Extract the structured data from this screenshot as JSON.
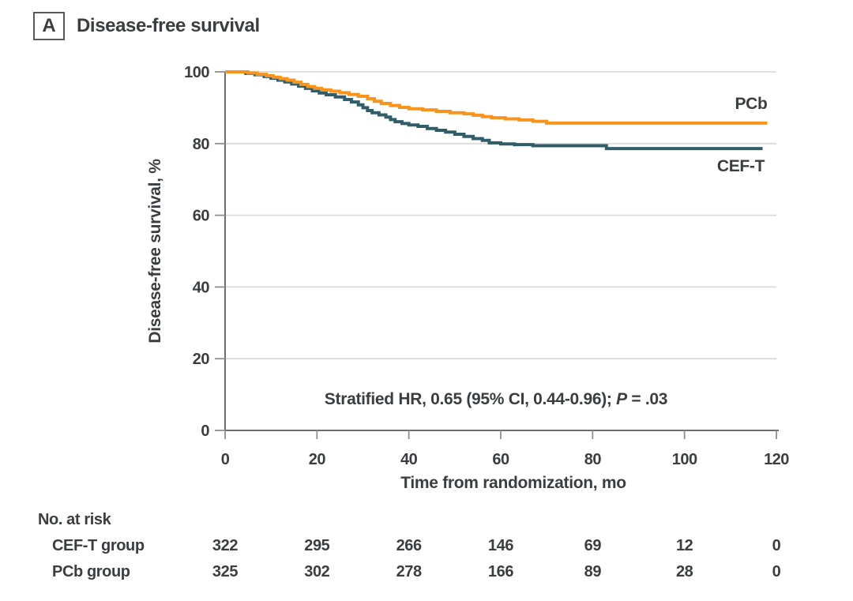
{
  "header": {
    "panel_letter": "A",
    "title": "Disease-free survival"
  },
  "annotation": {
    "text1": "Stratified HR, 0.65 (95% CI, 0.44-0.96); ",
    "p": "P",
    "text2": " = .03"
  },
  "chart_data": {
    "type": "line",
    "subtype": "kaplan-meier-step",
    "title": "Disease-free survival",
    "xlabel": "Time from randomization, mo",
    "ylabel": "Disease-free survival, %",
    "xlim": [
      0,
      120
    ],
    "ylim": [
      0,
      100
    ],
    "x_ticks": [
      0,
      20,
      40,
      60,
      80,
      100,
      120
    ],
    "y_ticks": [
      0,
      20,
      40,
      60,
      80,
      100
    ],
    "grid": "horizontal-only",
    "legend_position": "end-of-line-labels",
    "colors": {
      "cef_t": "#315D68",
      "pcb": "#F7941E",
      "gridline": "#DBDBDB",
      "axis": "#6E6E6E",
      "text": "#3A3E41"
    },
    "series": [
      {
        "name": "CEF-T",
        "color": "#315D68",
        "end_t": 117,
        "steps": [
          [
            0,
            100
          ],
          [
            4.5,
            99.6
          ],
          [
            6.5,
            99.2
          ],
          [
            8.5,
            98.7
          ],
          [
            10,
            98.2
          ],
          [
            11.5,
            97.7
          ],
          [
            13,
            97.2
          ],
          [
            14.5,
            96.6
          ],
          [
            16,
            96
          ],
          [
            17.5,
            95.4
          ],
          [
            19,
            94.7
          ],
          [
            20.5,
            94.1
          ],
          [
            22,
            93.6
          ],
          [
            24,
            93
          ],
          [
            26,
            92.3
          ],
          [
            27.5,
            91.6
          ],
          [
            29,
            90.8
          ],
          [
            30,
            90
          ],
          [
            31,
            89.2
          ],
          [
            32,
            88.6
          ],
          [
            33.5,
            88
          ],
          [
            35,
            87.4
          ],
          [
            36,
            86.7
          ],
          [
            37,
            86.1
          ],
          [
            38.5,
            85.6
          ],
          [
            40,
            85.2
          ],
          [
            42,
            84.8
          ],
          [
            44,
            84.2
          ],
          [
            46,
            83.7
          ],
          [
            48,
            83.2
          ],
          [
            50,
            82.6
          ],
          [
            52,
            82
          ],
          [
            54,
            81.4
          ],
          [
            56,
            80.9
          ],
          [
            57.5,
            80.2
          ],
          [
            60,
            79.9
          ],
          [
            63,
            79.7
          ],
          [
            67,
            79.4
          ],
          [
            83,
            78.6
          ]
        ]
      },
      {
        "name": "PCb",
        "color": "#F7941E",
        "end_t": 118,
        "steps": [
          [
            0,
            100
          ],
          [
            5,
            99.7
          ],
          [
            7,
            99.3
          ],
          [
            9,
            98.9
          ],
          [
            10.5,
            98.5
          ],
          [
            12,
            98.1
          ],
          [
            13.5,
            97.7
          ],
          [
            15,
            97.1
          ],
          [
            16.5,
            96.5
          ],
          [
            18,
            95.9
          ],
          [
            19.5,
            95.4
          ],
          [
            21,
            95
          ],
          [
            23,
            94.6
          ],
          [
            25,
            94.2
          ],
          [
            27,
            93.7
          ],
          [
            29,
            93.2
          ],
          [
            31,
            92.5
          ],
          [
            32.5,
            91.8
          ],
          [
            34,
            91.2
          ],
          [
            36,
            90.6
          ],
          [
            38,
            90.1
          ],
          [
            40,
            89.7
          ],
          [
            43,
            89.4
          ],
          [
            46,
            89
          ],
          [
            49,
            88.6
          ],
          [
            52,
            88.3
          ],
          [
            54,
            87.9
          ],
          [
            56,
            87.5
          ],
          [
            58,
            87.2
          ],
          [
            61,
            86.9
          ],
          [
            64,
            86.6
          ],
          [
            67,
            86.2
          ],
          [
            70,
            85.7
          ]
        ]
      }
    ],
    "annotation_text": "Stratified HR, 0.65 (95% CI, 0.44-0.96); P = .03",
    "risk_table": {
      "title": "No. at risk",
      "times": [
        0,
        20,
        40,
        60,
        80,
        100,
        120
      ],
      "rows": [
        {
          "label": "CEF-T group",
          "counts": [
            322,
            295,
            266,
            146,
            69,
            12,
            0
          ]
        },
        {
          "label": "PCb group",
          "counts": [
            325,
            302,
            278,
            166,
            89,
            28,
            0
          ]
        }
      ]
    }
  }
}
